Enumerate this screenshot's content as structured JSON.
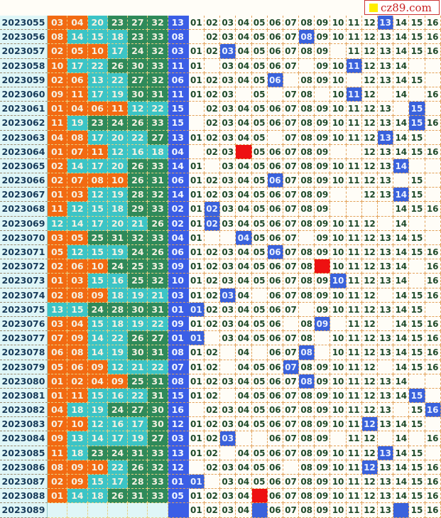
{
  "logo": {
    "text": "cz89.com",
    "square_color": "#ffee00"
  },
  "colors": {
    "low": "#f26a12",
    "mid": "#3cc4c6",
    "high": "#2f8a5a",
    "blue": "#3b5ee6",
    "hit_blue": "#3a62dc",
    "hit_red": "#ee1111"
  },
  "rows": [
    {
      "issue": "2023055",
      "reds": [
        "03",
        "04",
        "20",
        "23",
        "27",
        "32"
      ],
      "blue": "13",
      "grid": [
        "01",
        "02",
        "03",
        "04",
        "05",
        "06",
        "07",
        "08",
        "09",
        "10",
        "11",
        "12",
        "13",
        "14",
        "15",
        "16"
      ],
      "marks": [
        {
          "col": 13,
          "color": "blue"
        }
      ]
    },
    {
      "issue": "2023056",
      "reds": [
        "08",
        "14",
        "15",
        "18",
        "23",
        "33"
      ],
      "blue": "08",
      "grid": [
        "",
        "02",
        "03",
        "04",
        "05",
        "06",
        "07",
        "08",
        "09",
        "10",
        "11",
        "12",
        "13",
        "14",
        "15",
        "16"
      ],
      "marks": [
        {
          "col": 8,
          "color": "blue"
        }
      ]
    },
    {
      "issue": "2023057",
      "reds": [
        "02",
        "05",
        "10",
        "17",
        "24",
        "32"
      ],
      "blue": "03",
      "grid": [
        "01",
        "02",
        "03",
        "04",
        "05",
        "06",
        "07",
        "08",
        "09",
        "",
        "11",
        "12",
        "13",
        "14",
        "15",
        "16"
      ],
      "marks": [
        {
          "col": 3,
          "color": "blue"
        }
      ]
    },
    {
      "issue": "2023058",
      "reds": [
        "10",
        "17",
        "22",
        "26",
        "30",
        "33"
      ],
      "blue": "11",
      "grid": [
        "01",
        "",
        "03",
        "04",
        "05",
        "06",
        "07",
        "",
        "09",
        "10",
        "11",
        "12",
        "13",
        "14",
        "",
        ""
      ],
      "marks": [
        {
          "col": 11,
          "color": "blue"
        }
      ]
    },
    {
      "issue": "2023059",
      "reds": [
        "02",
        "06",
        "13",
        "22",
        "27",
        "32"
      ],
      "blue": "06",
      "grid": [
        "01",
        "02",
        "03",
        "04",
        "05",
        "06",
        "",
        "08",
        "09",
        "10",
        "",
        "12",
        "13",
        "14",
        "15",
        ""
      ],
      "marks": [
        {
          "col": 6,
          "color": "blue"
        }
      ]
    },
    {
      "issue": "2023060",
      "reds": [
        "09",
        "11",
        "17",
        "19",
        "30",
        "31"
      ],
      "blue": "11",
      "grid": [
        "01",
        "02",
        "03",
        "",
        "05",
        "",
        "07",
        "08",
        "",
        "10",
        "11",
        "12",
        "",
        "14",
        "",
        "16"
      ],
      "marks": [
        {
          "col": 11,
          "color": "blue"
        }
      ]
    },
    {
      "issue": "2023061",
      "reds": [
        "01",
        "04",
        "06",
        "11",
        "12",
        "22"
      ],
      "blue": "15",
      "grid": [
        "",
        "02",
        "03",
        "04",
        "05",
        "06",
        "07",
        "08",
        "09",
        "10",
        "11",
        "12",
        "13",
        "",
        "15",
        ""
      ],
      "marks": [
        {
          "col": 15,
          "color": "blue"
        }
      ]
    },
    {
      "issue": "2023062",
      "reds": [
        "11",
        "19",
        "23",
        "24",
        "26",
        "33"
      ],
      "blue": "15",
      "grid": [
        "",
        "02",
        "03",
        "04",
        "05",
        "06",
        "07",
        "08",
        "09",
        "10",
        "11",
        "12",
        "13",
        "14",
        "15",
        "16"
      ],
      "marks": [
        {
          "col": 15,
          "color": "blue"
        }
      ]
    },
    {
      "issue": "2023063",
      "reds": [
        "04",
        "08",
        "17",
        "20",
        "22",
        "27"
      ],
      "blue": "13",
      "grid": [
        "01",
        "02",
        "03",
        "04",
        "05",
        "",
        "07",
        "08",
        "09",
        "10",
        "11",
        "12",
        "13",
        "14",
        "15",
        ""
      ],
      "marks": [
        {
          "col": 13,
          "color": "blue"
        }
      ]
    },
    {
      "issue": "2023064",
      "reds": [
        "01",
        "07",
        "11",
        "12",
        "16",
        "18"
      ],
      "blue": "04",
      "grid": [
        "",
        "02",
        "03",
        "",
        "05",
        "06",
        "07",
        "08",
        "09",
        "",
        "",
        "12",
        "13",
        "14",
        "15",
        "16"
      ],
      "marks": [
        {
          "col": 4,
          "color": "red"
        }
      ]
    },
    {
      "issue": "2023065",
      "reds": [
        "02",
        "14",
        "17",
        "20",
        "26",
        "33"
      ],
      "blue": "14",
      "grid": [
        "01",
        "",
        "03",
        "04",
        "05",
        "06",
        "07",
        "08",
        "09",
        "10",
        "11",
        "12",
        "13",
        "14",
        "",
        ""
      ],
      "marks": [
        {
          "col": 14,
          "color": "blue"
        }
      ]
    },
    {
      "issue": "2023066",
      "reds": [
        "02",
        "07",
        "08",
        "10",
        "26",
        "31"
      ],
      "blue": "06",
      "grid": [
        "01",
        "02",
        "03",
        "04",
        "05",
        "06",
        "07",
        "08",
        "09",
        "10",
        "11",
        "12",
        "13",
        "",
        "15",
        ""
      ],
      "marks": [
        {
          "col": 6,
          "color": "blue"
        }
      ]
    },
    {
      "issue": "2023067",
      "reds": [
        "01",
        "03",
        "12",
        "19",
        "28",
        "32"
      ],
      "blue": "14",
      "grid": [
        "01",
        "02",
        "03",
        "04",
        "05",
        "06",
        "07",
        "08",
        "09",
        "",
        "",
        "12",
        "13",
        "14",
        "15",
        ""
      ],
      "marks": [
        {
          "col": 14,
          "color": "blue"
        }
      ]
    },
    {
      "issue": "2023068",
      "reds": [
        "11",
        "12",
        "15",
        "18",
        "29",
        "33"
      ],
      "blue": "02",
      "grid": [
        "01",
        "02",
        "03",
        "04",
        "05",
        "06",
        "07",
        "08",
        "09",
        "",
        "",
        "",
        "",
        "14",
        "15",
        "16"
      ],
      "marks": [
        {
          "col": 2,
          "color": "blue"
        }
      ]
    },
    {
      "issue": "2023069",
      "reds": [
        "12",
        "14",
        "17",
        "20",
        "21",
        "26"
      ],
      "blue": "02",
      "grid": [
        "01",
        "02",
        "03",
        "04",
        "05",
        "06",
        "07",
        "08",
        "09",
        "10",
        "11",
        "12",
        "",
        "14",
        "",
        ""
      ],
      "marks": [
        {
          "col": 2,
          "color": "blue"
        }
      ]
    },
    {
      "issue": "2023070",
      "reds": [
        "03",
        "05",
        "25",
        "31",
        "32",
        "33"
      ],
      "blue": "04",
      "grid": [
        "01",
        "",
        "",
        "04",
        "05",
        "06",
        "07",
        "",
        "09",
        "10",
        "11",
        "12",
        "13",
        "14",
        "15",
        ""
      ],
      "marks": [
        {
          "col": 4,
          "color": "blue"
        }
      ]
    },
    {
      "issue": "2023071",
      "reds": [
        "05",
        "12",
        "15",
        "19",
        "24",
        "26"
      ],
      "blue": "06",
      "grid": [
        "01",
        "02",
        "03",
        "04",
        "05",
        "06",
        "07",
        "08",
        "09",
        "10",
        "11",
        "12",
        "13",
        "14",
        "15",
        "16"
      ],
      "marks": [
        {
          "col": 6,
          "color": "blue"
        }
      ]
    },
    {
      "issue": "2023072",
      "reds": [
        "02",
        "06",
        "10",
        "24",
        "25",
        "33"
      ],
      "blue": "09",
      "grid": [
        "01",
        "02",
        "03",
        "04",
        "05",
        "06",
        "07",
        "08",
        "",
        "10",
        "11",
        "12",
        "13",
        "14",
        "",
        "16"
      ],
      "marks": [
        {
          "col": 9,
          "color": "red"
        }
      ]
    },
    {
      "issue": "2023073",
      "reds": [
        "01",
        "03",
        "15",
        "16",
        "25",
        "32"
      ],
      "blue": "10",
      "grid": [
        "01",
        "02",
        "03",
        "04",
        "05",
        "06",
        "07",
        "08",
        "09",
        "10",
        "11",
        "12",
        "13",
        "14",
        "",
        "16"
      ],
      "marks": [
        {
          "col": 10,
          "color": "blue"
        }
      ]
    },
    {
      "issue": "2023074",
      "reds": [
        "02",
        "08",
        "09",
        "18",
        "19",
        "21"
      ],
      "blue": "03",
      "grid": [
        "01",
        "02",
        "03",
        "04",
        "",
        "06",
        "07",
        "08",
        "09",
        "10",
        "11",
        "12",
        "",
        "14",
        "15",
        "16"
      ],
      "marks": [
        {
          "col": 3,
          "color": "blue"
        }
      ]
    },
    {
      "issue": "2023075",
      "reds": [
        "13",
        "15",
        "24",
        "28",
        "30",
        "31"
      ],
      "blue": "01",
      "grid": [
        "01",
        "02",
        "03",
        "04",
        "05",
        "06",
        "07",
        "",
        "09",
        "10",
        "11",
        "12",
        "13",
        "14",
        "15",
        ""
      ],
      "marks": [
        {
          "col": 1,
          "color": "blue"
        }
      ]
    },
    {
      "issue": "2023076",
      "reds": [
        "03",
        "04",
        "15",
        "18",
        "19",
        "22"
      ],
      "blue": "09",
      "grid": [
        "01",
        "02",
        "03",
        "04",
        "05",
        "06",
        "",
        "08",
        "09",
        "",
        "11",
        "12",
        "",
        "14",
        "15",
        "16"
      ],
      "marks": [
        {
          "col": 9,
          "color": "blue"
        }
      ]
    },
    {
      "issue": "2023077",
      "reds": [
        "07",
        "09",
        "14",
        "22",
        "26",
        "27"
      ],
      "blue": "01",
      "grid": [
        "01",
        "",
        "03",
        "04",
        "05",
        "06",
        "07",
        "08",
        "",
        "10",
        "11",
        "12",
        "13",
        "14",
        "15",
        "16"
      ],
      "marks": [
        {
          "col": 1,
          "color": "blue"
        }
      ]
    },
    {
      "issue": "2023078",
      "reds": [
        "06",
        "08",
        "14",
        "19",
        "30",
        "31"
      ],
      "blue": "08",
      "grid": [
        "01",
        "02",
        "",
        "04",
        "",
        "06",
        "07",
        "08",
        "",
        "10",
        "11",
        "12",
        "13",
        "14",
        "15",
        "16"
      ],
      "marks": [
        {
          "col": 8,
          "color": "blue"
        }
      ]
    },
    {
      "issue": "2023079",
      "reds": [
        "05",
        "06",
        "09",
        "12",
        "21",
        "22"
      ],
      "blue": "07",
      "grid": [
        "01",
        "02",
        "",
        "04",
        "05",
        "06",
        "07",
        "08",
        "09",
        "10",
        "11",
        "12",
        "",
        "14",
        "15",
        "16"
      ],
      "marks": [
        {
          "col": 7,
          "color": "blue"
        }
      ]
    },
    {
      "issue": "2023080",
      "reds": [
        "01",
        "02",
        "04",
        "09",
        "25",
        "31"
      ],
      "blue": "08",
      "grid": [
        "01",
        "02",
        "03",
        "04",
        "05",
        "06",
        "07",
        "08",
        "09",
        "10",
        "11",
        "12",
        "13",
        "14",
        "",
        ""
      ],
      "marks": [
        {
          "col": 8,
          "color": "blue"
        }
      ]
    },
    {
      "issue": "2023081",
      "reds": [
        "01",
        "11",
        "15",
        "16",
        "22",
        "31"
      ],
      "blue": "15",
      "grid": [
        "01",
        "02",
        "",
        "04",
        "05",
        "06",
        "07",
        "08",
        "09",
        "10",
        "11",
        "12",
        "13",
        "14",
        "15",
        ""
      ],
      "marks": [
        {
          "col": 15,
          "color": "blue"
        }
      ]
    },
    {
      "issue": "2023082",
      "reds": [
        "04",
        "18",
        "19",
        "24",
        "27",
        "30"
      ],
      "blue": "16",
      "grid": [
        "",
        "02",
        "03",
        "04",
        "05",
        "06",
        "07",
        "08",
        "09",
        "10",
        "11",
        "12",
        "13",
        "",
        "15",
        "16"
      ],
      "marks": [
        {
          "col": 16,
          "color": "blue"
        }
      ]
    },
    {
      "issue": "2023083",
      "reds": [
        "07",
        "10",
        "12",
        "16",
        "17",
        "30"
      ],
      "blue": "12",
      "grid": [
        "01",
        "02",
        "03",
        "04",
        "05",
        "06",
        "07",
        "08",
        "09",
        "10",
        "11",
        "12",
        "13",
        "14",
        "15",
        ""
      ],
      "marks": [
        {
          "col": 12,
          "color": "blue"
        }
      ]
    },
    {
      "issue": "2023084",
      "reds": [
        "09",
        "13",
        "14",
        "17",
        "19",
        "27"
      ],
      "blue": "03",
      "grid": [
        "01",
        "02",
        "03",
        "",
        "",
        "06",
        "07",
        "08",
        "09",
        "",
        "11",
        "12",
        "",
        "14",
        "",
        "16"
      ],
      "marks": [
        {
          "col": 3,
          "color": "blue"
        }
      ]
    },
    {
      "issue": "2023085",
      "reds": [
        "11",
        "18",
        "23",
        "24",
        "31",
        "33"
      ],
      "blue": "13",
      "grid": [
        "01",
        "02",
        "",
        "04",
        "05",
        "06",
        "07",
        "08",
        "09",
        "10",
        "11",
        "12",
        "13",
        "14",
        "15",
        ""
      ],
      "marks": [
        {
          "col": 13,
          "color": "blue"
        }
      ]
    },
    {
      "issue": "2023086",
      "reds": [
        "08",
        "09",
        "10",
        "22",
        "26",
        "32"
      ],
      "blue": "12",
      "grid": [
        "",
        "02",
        "03",
        "04",
        "05",
        "06",
        "",
        "08",
        "09",
        "10",
        "11",
        "12",
        "13",
        "14",
        "15",
        "16"
      ],
      "marks": [
        {
          "col": 12,
          "color": "blue"
        }
      ]
    },
    {
      "issue": "2023087",
      "reds": [
        "02",
        "09",
        "15",
        "17",
        "28",
        "33"
      ],
      "blue": "01",
      "grid": [
        "01",
        "",
        "03",
        "04",
        "05",
        "06",
        "07",
        "08",
        "09",
        "10",
        "11",
        "12",
        "13",
        "14",
        "15",
        "16"
      ],
      "marks": [
        {
          "col": 1,
          "color": "blue"
        }
      ]
    },
    {
      "issue": "2023088",
      "reds": [
        "01",
        "14",
        "18",
        "26",
        "31",
        "33"
      ],
      "blue": "05",
      "grid": [
        "01",
        "02",
        "03",
        "04",
        "",
        "06",
        "07",
        "08",
        "09",
        "10",
        "11",
        "12",
        "13",
        "14",
        "15",
        "16"
      ],
      "marks": [
        {
          "col": 5,
          "color": "red"
        }
      ]
    },
    {
      "issue": "2023089",
      "reds": [
        "",
        "",
        "",
        "",
        "",
        ""
      ],
      "blue": "",
      "grid": [
        "01",
        "02",
        "03",
        "04",
        "",
        "06",
        "07",
        "08",
        "09",
        "10",
        "11",
        "12",
        "13",
        "",
        "15",
        "16"
      ],
      "marks": [
        {
          "col": 5,
          "color": "blue"
        },
        {
          "col": 14,
          "color": "blue"
        }
      ]
    }
  ]
}
